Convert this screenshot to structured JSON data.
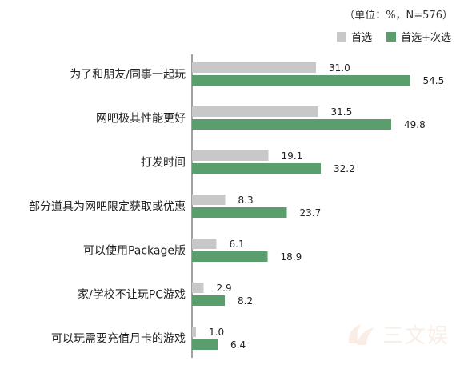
{
  "note": "（单位：%，N=576）",
  "colors": {
    "first": "#c8c8c8",
    "combined": "#5b9e6e",
    "axis": "#444444"
  },
  "watermark": {
    "text": "三文娱"
  },
  "chart_data": {
    "type": "bar",
    "orientation": "horizontal",
    "categories": [
      "为了和朋友/同事一起玩",
      "网吧极其性能更好",
      "打发时间",
      "部分道具为网吧限定获取或优惠",
      "可以使用Package版",
      "家/学校不让玩PC游戏",
      "可以玩需要充值月卡的游戏"
    ],
    "series": [
      {
        "name": "首选",
        "color": "#c8c8c8",
        "values": [
          31.0,
          31.5,
          19.1,
          8.3,
          6.1,
          2.9,
          1.0
        ]
      },
      {
        "name": "首选+次选",
        "color": "#5b9e6e",
        "values": [
          54.5,
          49.8,
          32.2,
          23.7,
          18.9,
          8.2,
          6.4
        ]
      }
    ],
    "xlim": [
      0,
      60
    ],
    "grid": false,
    "legend": "top-right",
    "data_labels": true
  }
}
